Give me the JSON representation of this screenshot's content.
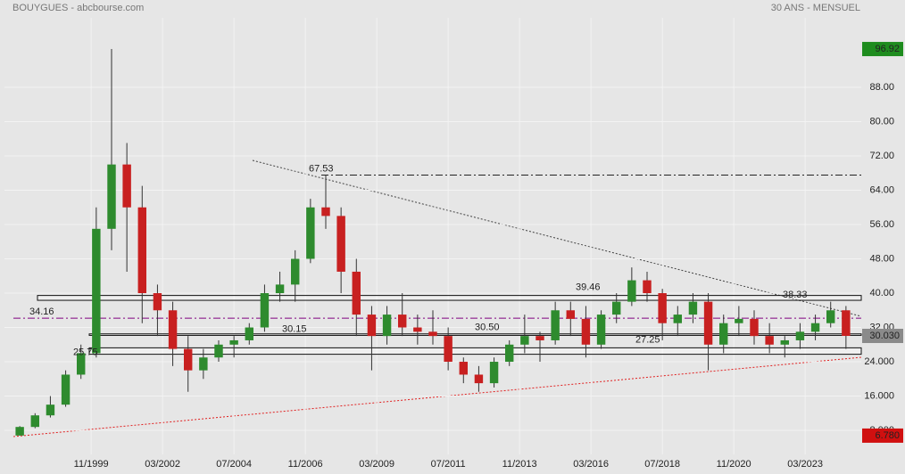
{
  "chart_data": {
    "type": "candlestick",
    "title": "BOUYGUES - abcbourse.com",
    "subtitle": "30 ANS - MENSUEL",
    "x": [
      "07/1997",
      "01/1998",
      "07/1998",
      "01/1999",
      "07/1999",
      "01/2000",
      "07/2000",
      "01/2001",
      "07/2001",
      "01/2002",
      "07/2002",
      "01/2003",
      "07/2003",
      "01/2004",
      "07/2004",
      "01/2005",
      "07/2005",
      "01/2006",
      "07/2006",
      "01/2007",
      "07/2007",
      "01/2008",
      "07/2008",
      "01/2009",
      "07/2009",
      "01/2010",
      "07/2010",
      "01/2011",
      "07/2011",
      "01/2012",
      "07/2012",
      "01/2013",
      "07/2013",
      "01/2014",
      "07/2014",
      "01/2015",
      "07/2015",
      "01/2016",
      "07/2016",
      "01/2017",
      "07/2017",
      "01/2018",
      "07/2018",
      "01/2019",
      "07/2019",
      "01/2020",
      "07/2020",
      "01/2021",
      "07/2021",
      "01/2022",
      "07/2022",
      "01/2023",
      "07/2023",
      "01/2024",
      "07/2024"
    ],
    "open": [
      6.8,
      8.8,
      11.5,
      14,
      21,
      26,
      55,
      70,
      60,
      40,
      36,
      27,
      22,
      25,
      28,
      29,
      32,
      40,
      42,
      48,
      60,
      58,
      45,
      35,
      30,
      35,
      32,
      31,
      30,
      24,
      21,
      19,
      24,
      28,
      30,
      29,
      36,
      34,
      28,
      35,
      38,
      43,
      40,
      33,
      35,
      38,
      28,
      33,
      34,
      30,
      28,
      29,
      31,
      33,
      36
    ],
    "high": [
      9,
      12,
      16,
      22,
      28,
      60,
      96.92,
      75,
      65,
      42,
      38,
      30,
      27,
      29,
      30,
      33,
      42,
      45,
      50,
      62,
      67.53,
      60,
      48,
      37,
      37,
      40,
      35,
      36,
      32,
      25,
      23,
      25,
      29,
      35,
      31,
      38,
      38,
      37,
      36,
      40,
      46,
      45,
      41,
      37,
      40,
      40,
      35,
      37,
      36,
      33,
      30,
      33,
      35,
      38,
      37
    ],
    "low": [
      6.78,
      8.5,
      11,
      13.5,
      20,
      25,
      50,
      45,
      33,
      30,
      23,
      17,
      20,
      24,
      25,
      28,
      31,
      38,
      38,
      47,
      55,
      40,
      30,
      22,
      28,
      30,
      28,
      28,
      22,
      19,
      17,
      18,
      23,
      26,
      24,
      28,
      30,
      25,
      27,
      33,
      37,
      38,
      29,
      30,
      33,
      22,
      26,
      30,
      28,
      26,
      25,
      27,
      29,
      32,
      27
    ],
    "close": [
      8.8,
      11.5,
      14,
      21,
      26,
      55,
      70,
      60,
      40,
      36,
      27,
      22,
      25,
      28,
      29,
      32,
      40,
      42,
      48,
      60,
      58,
      45,
      35,
      30,
      35,
      32,
      31,
      30,
      24,
      21,
      19,
      24,
      28,
      30,
      29,
      36,
      34,
      28,
      35,
      38,
      43,
      40,
      33,
      35,
      38,
      28,
      33,
      34,
      30,
      28,
      29,
      31,
      33,
      36,
      30.03
    ],
    "up_color": "#2e8b2e",
    "down_color": "#c82020",
    "xlim": [
      "01/1997",
      "01/2025"
    ],
    "xticks": [
      "11/1999",
      "03/2002",
      "07/2004",
      "11/2006",
      "03/2009",
      "07/2011",
      "11/2013",
      "03/2016",
      "07/2018",
      "11/2020",
      "03/2023"
    ],
    "ylim": [
      2.4,
      104.2
    ],
    "yticks": [
      {
        "value": 8,
        "label": "8.000"
      },
      {
        "value": 16,
        "label": "16.000"
      },
      {
        "value": 24,
        "label": "24.000"
      },
      {
        "value": 32,
        "label": "32.00"
      },
      {
        "value": 40,
        "label": "40.00"
      },
      {
        "value": 48,
        "label": "48.00"
      },
      {
        "value": 56,
        "label": "56.00"
      },
      {
        "value": 64,
        "label": "64.00"
      },
      {
        "value": 72,
        "label": "72.00"
      },
      {
        "value": 80,
        "label": "80.00"
      },
      {
        "value": 88,
        "label": "88.00"
      }
    ],
    "grid": true,
    "price_tags": [
      {
        "value": 96.92,
        "label": "96.92",
        "color": "#1e8c1e"
      },
      {
        "value": 30.03,
        "label": "30.030",
        "color": "#8a8a8a"
      },
      {
        "value": 6.78,
        "label": "6.780",
        "color": "#d01010"
      }
    ],
    "annotations": [
      {
        "value": 67.53,
        "label": "67.53"
      },
      {
        "value": 39.46,
        "label": "39.46"
      },
      {
        "value": 38.33,
        "label": "38.33"
      },
      {
        "value": 34.16,
        "label": "34.16"
      },
      {
        "value": 30.15,
        "label": "30.15"
      },
      {
        "value": 30.5,
        "label": "30.50"
      },
      {
        "value": 27.25,
        "label": "27.25"
      },
      {
        "value": 25.75,
        "label": "25.75"
      }
    ]
  }
}
